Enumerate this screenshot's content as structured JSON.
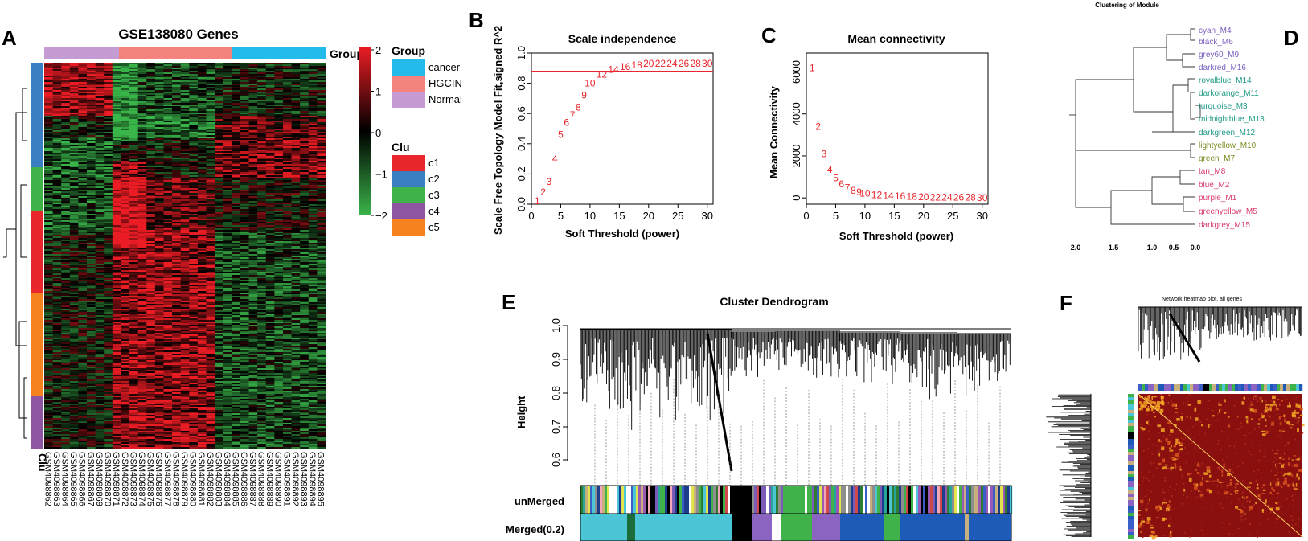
{
  "colors": {
    "cancer": "#22bbea",
    "HGCIN": "#f4837d",
    "Normal": "#c59bd3",
    "c1": "#e8262b",
    "c2": "#3a7fc1",
    "c3": "#3fb34a",
    "c4": "#8e55a3",
    "c5": "#f5821f",
    "heat_low": "#3ab54a",
    "heat_mid": "#000000",
    "heat_high": "#ec1c24",
    "power_text": "#e8262b",
    "module_purple": "#7a5fc0",
    "module_teal": "#1f9a86",
    "module_olive": "#7a8a1e",
    "module_pink": "#d83a6a"
  },
  "panelA": {
    "label": "A",
    "title": "GSE138080 Genes",
    "group_bar_label": "Group",
    "clu_label": "Clu",
    "legend_group_title": "Group",
    "legend_group_items": [
      "cancer",
      "HGCIN",
      "Normal"
    ],
    "legend_clu_title": "Clu",
    "legend_clu_items": [
      "c1",
      "c2",
      "c3",
      "c4",
      "c5"
    ],
    "colorbar_ticks": [
      "2",
      "1",
      "0",
      "−1",
      "−2"
    ],
    "samples": [
      "GSM4098862",
      "GSM4098863",
      "GSM4098864",
      "GSM4098865",
      "GSM4098866",
      "GSM4098867",
      "GSM4098869",
      "GSM4098870",
      "GSM4098871",
      "GSM4098872",
      "GSM4098873",
      "GSM4098874",
      "GSM4098875",
      "GSM4098876",
      "GSM4098877",
      "GSM4098878",
      "GSM4098879",
      "GSM4098880",
      "GSM4098881",
      "GSM4098882",
      "GSM4098883",
      "GSM4098884",
      "GSM4098885",
      "GSM4098886",
      "GSM4098887",
      "GSM4098888",
      "GSM4098889",
      "GSM4098890",
      "GSM4098891",
      "GSM4098892",
      "GSM4098893",
      "GSM4098894",
      "GSM4098895"
    ]
  },
  "panelB": {
    "label": "B",
    "chart_data": {
      "type": "scatter",
      "title": "Scale independence",
      "xlabel": "Soft Threshold (power)",
      "ylabel": "Scale Free Topology Model Fit,signed R^2",
      "xlim": [
        0,
        31
      ],
      "ylim": [
        0,
        1.0
      ],
      "xticks": [
        "0",
        "5",
        "10",
        "15",
        "20",
        "25",
        "30"
      ],
      "yticks": [
        "0.0",
        "0.2",
        "0.4",
        "0.6",
        "0.8",
        "1.0"
      ],
      "threshold_line": 0.88,
      "x": [
        1,
        2,
        3,
        4,
        5,
        6,
        7,
        8,
        9,
        10,
        12,
        14,
        16,
        18,
        20,
        22,
        24,
        26,
        28,
        30
      ],
      "y": [
        0.02,
        0.08,
        0.15,
        0.3,
        0.46,
        0.54,
        0.59,
        0.64,
        0.72,
        0.8,
        0.86,
        0.89,
        0.91,
        0.92,
        0.93,
        0.93,
        0.93,
        0.93,
        0.93,
        0.93
      ],
      "labels": [
        "1",
        "2",
        "3",
        "4",
        "5",
        "6",
        "7",
        "8",
        "9",
        "10",
        "12",
        "14",
        "16",
        "18",
        "20",
        "22",
        "24",
        "26",
        "28",
        "30"
      ]
    }
  },
  "panelC": {
    "label": "C",
    "chart_data": {
      "type": "scatter",
      "title": "Mean connectivity",
      "xlabel": "Soft Threshold (power)",
      "ylabel": "Mean Connectivity",
      "xlim": [
        0,
        31
      ],
      "ylim": [
        -300,
        6900
      ],
      "xticks": [
        "0",
        "5",
        "10",
        "15",
        "20",
        "25",
        "30"
      ],
      "yticks": [
        "0",
        "2000",
        "4000",
        "6000"
      ],
      "x": [
        1,
        2,
        3,
        4,
        5,
        6,
        7,
        8,
        9,
        10,
        12,
        14,
        16,
        18,
        20,
        22,
        24,
        26,
        28,
        30
      ],
      "y": [
        6200,
        3400,
        2100,
        1350,
        950,
        650,
        480,
        360,
        280,
        220,
        150,
        110,
        80,
        60,
        45,
        35,
        28,
        22,
        18,
        15
      ],
      "labels": [
        "1",
        "2",
        "3",
        "4",
        "5",
        "6",
        "7",
        "8",
        "9",
        "10",
        "12",
        "14",
        "16",
        "18",
        "20",
        "22",
        "24",
        "26",
        "28",
        "30"
      ]
    }
  },
  "panelD": {
    "label": "D",
    "title": "Clustering of Module",
    "axis_ticks": [
      "2.0",
      "1.5",
      "1.0",
      "0.5",
      "0.0"
    ],
    "modules": [
      "cyan_M4",
      "black_M6",
      "grey60_M9",
      "darkred_M16",
      "royalblue_M14",
      "darkorange_M11",
      "turquoise_M3",
      "midnightblue_M13",
      "darkgreen_M12",
      "lightyellow_M10",
      "green_M7",
      "tan_M8",
      "blue_M2",
      "purple_M1",
      "greenyellow_M5",
      "darkgrey_M15"
    ],
    "module_groups": [
      "purple",
      "purple",
      "purple",
      "purple",
      "teal",
      "teal",
      "teal",
      "teal",
      "teal",
      "olive",
      "olive",
      "pink",
      "pink",
      "pink",
      "pink",
      "pink"
    ]
  },
  "panelE": {
    "label": "E",
    "title": "Cluster Dendrogram",
    "ylabel": "Height",
    "yticks": [
      "1.0",
      "0.9",
      "0.8",
      "0.7",
      "0.6"
    ],
    "row_labels": [
      "unMerged",
      "Merged(0.2)"
    ]
  },
  "panelF": {
    "label": "F",
    "title": "Network heatmap plot, all genes"
  }
}
